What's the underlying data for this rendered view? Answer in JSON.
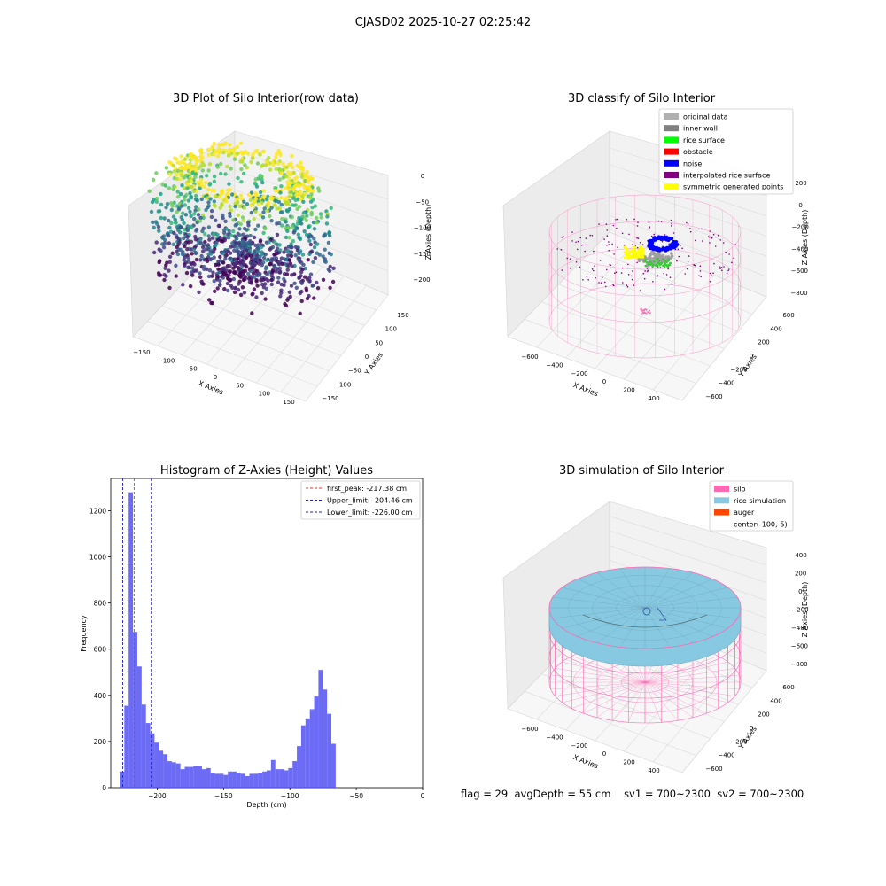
{
  "figure": {
    "suptitle": "CJASD02 2025-10-27 02:25:42",
    "footer": {
      "flag": "flag = 29",
      "avg_depth": "avgDepth = 55 cm",
      "sv1": "sv1 = 700~2300",
      "sv2": "sv2 = 700~2300"
    }
  },
  "colors": {
    "hist_bar": "#5151f5",
    "first_peak": "#e8352c",
    "limits": "#1f1fbf",
    "silo_pink": "#ff69b4",
    "rice_simulation": "#87c9e0",
    "auger": "#ff4500"
  },
  "chart_data": [
    {
      "type": "scatter",
      "projection": "3d",
      "title": "3D Plot of Silo Interior(row data)",
      "xlabel": "X Axies",
      "ylabel": "Y Axies",
      "zlabel": "Z Axies (Depth)",
      "x_ticks": [
        "−150",
        "−100",
        "−50",
        "0",
        "50",
        "100",
        "150"
      ],
      "y_ticks": [
        "−150",
        "−100",
        "−50",
        "0",
        "50",
        "100",
        "150"
      ],
      "z_ticks": [
        "0",
        "−50",
        "−100",
        "−150",
        "−200"
      ],
      "xlim": [
        -170,
        170
      ],
      "ylim": [
        -170,
        170
      ],
      "zlim": [
        -230,
        0
      ],
      "colormap": "viridis"
    },
    {
      "type": "scatter",
      "projection": "3d",
      "title": "3D classify of Silo Interior",
      "xlabel": "X Axies",
      "ylabel": "Y Axies",
      "zlabel": "Z Axies (Depth)",
      "x_ticks": [
        "−600",
        "−400",
        "−200",
        "0",
        "200",
        "400"
      ],
      "y_ticks": [
        "−600",
        "−400",
        "−200",
        "0",
        "200",
        "400",
        "600"
      ],
      "z_ticks": [
        "200",
        "0",
        "−200",
        "−400",
        "−600",
        "−800"
      ],
      "legend": [
        {
          "label": "original data",
          "color": "#b0b0b0"
        },
        {
          "label": "inner wall",
          "color": "#808080"
        },
        {
          "label": "rice surface",
          "color": "#00ff00"
        },
        {
          "label": "obstacle",
          "color": "#ff0000"
        },
        {
          "label": "noise",
          "color": "#0000ff"
        },
        {
          "label": "interpolated rice surface",
          "color": "#800080"
        },
        {
          "label": "symmetric generated points",
          "color": "#ffff00"
        }
      ],
      "legend_position": "top-right"
    },
    {
      "type": "bar",
      "title": "Histogram of Z-Axies (Height) Values",
      "xlabel": "Depth (cm)",
      "ylabel": "Frequency",
      "xlim": [
        -235,
        0
      ],
      "ylim": [
        0,
        1340
      ],
      "x_ticks": [
        "−200",
        "−150",
        "−100",
        "−50",
        "0"
      ],
      "y_ticks": [
        "0",
        "200",
        "400",
        "600",
        "800",
        "1000",
        "1200"
      ],
      "bin_start": -228,
      "bin_width": 3.25,
      "values": [
        70,
        355,
        1280,
        675,
        525,
        360,
        280,
        235,
        195,
        160,
        145,
        115,
        110,
        105,
        80,
        90,
        90,
        95,
        95,
        80,
        85,
        65,
        60,
        60,
        55,
        70,
        70,
        65,
        60,
        50,
        60,
        60,
        65,
        70,
        75,
        120,
        80,
        80,
        75,
        85,
        115,
        180,
        270,
        300,
        340,
        395,
        510,
        425,
        320,
        190
      ],
      "lines": [
        {
          "label": "first_peak: -217.38 cm",
          "x": -217.38,
          "style": "dashed",
          "color": "#e8352c"
        },
        {
          "label": "Upper_limit: -204.46 cm",
          "x": -204.46,
          "style": "dashed",
          "color": "#1f1fbf"
        },
        {
          "label": "Lower_limit: -226.00 cm",
          "x": -226.0,
          "style": "dashed",
          "color": "#1f1fbf"
        }
      ],
      "legend_position": "top-right"
    },
    {
      "type": "surface",
      "projection": "3d",
      "title": "3D simulation of Silo Interior",
      "xlabel": "X Axies",
      "ylabel": "Y Axies",
      "zlabel": "Z Axies (Depth)",
      "x_ticks": [
        "−600",
        "−400",
        "−200",
        "0",
        "200",
        "400"
      ],
      "y_ticks": [
        "−600",
        "−400",
        "−200",
        "0",
        "200",
        "400",
        "600"
      ],
      "z_ticks": [
        "400",
        "200",
        "0",
        "−200",
        "−400",
        "−600",
        "−800"
      ],
      "legend": [
        {
          "label": "silo",
          "color": "#ff69b4"
        },
        {
          "label": "rice simulation",
          "color": "#87c9e0"
        },
        {
          "label": "auger",
          "color": "#ff4500"
        },
        {
          "label": "center(-100,-5)",
          "color": ""
        }
      ],
      "legend_position": "top-right"
    }
  ]
}
